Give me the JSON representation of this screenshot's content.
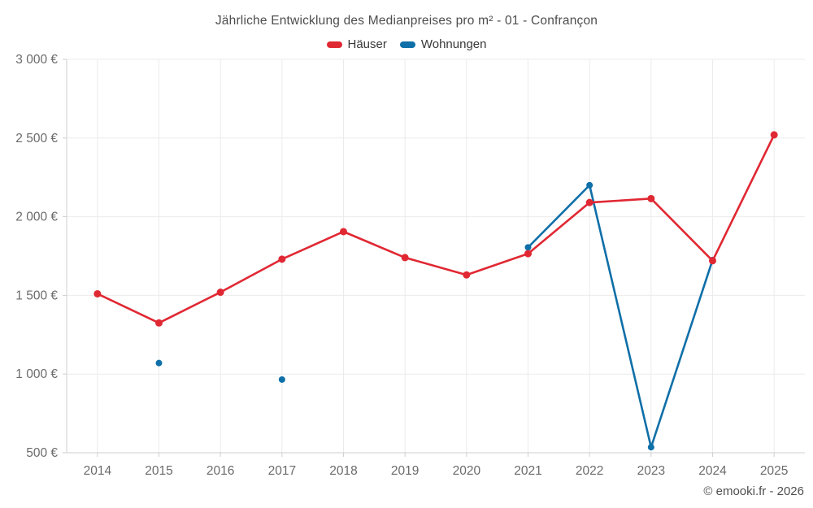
{
  "header": {
    "title": "Jährliche Entwicklung des Medianpreises pro m² - 01 - Confrançon"
  },
  "footer": {
    "copyright": "© emooki.fr - 2026"
  },
  "colors": {
    "haeuser": "#e02833",
    "wohnungen": "#0f6fa8",
    "grid": "#ebebeb",
    "axis": "#cfcfcf",
    "axis_label": "#6b6b6b"
  },
  "chart_data": {
    "type": "line",
    "title": "Jährliche Entwicklung des Medianpreises pro m² - 01 - Confrançon",
    "xlabel": "",
    "ylabel": "",
    "categories": [
      "2014",
      "2015",
      "2016",
      "2017",
      "2018",
      "2019",
      "2020",
      "2021",
      "2022",
      "2023",
      "2024",
      "2025"
    ],
    "series": [
      {
        "name": "Häuser",
        "color": "#e02833",
        "marker_radius": 4.5,
        "line_width": 2.6,
        "values": [
          1510,
          1325,
          1520,
          1730,
          1905,
          1740,
          1630,
          1765,
          2090,
          2115,
          1720,
          2520
        ]
      },
      {
        "name": "Wohnungen",
        "color": "#0f6fa8",
        "marker_radius": 4,
        "line_width": 2.6,
        "values": [
          null,
          1070,
          null,
          965,
          null,
          null,
          null,
          1805,
          2200,
          535,
          1725,
          null
        ]
      }
    ],
    "ylim": [
      500,
      3000
    ],
    "yticks": [
      500,
      1000,
      1500,
      2000,
      2500,
      3000
    ],
    "ytick_labels": [
      "500 €",
      "1 000 €",
      "1 500 €",
      "2 000 €",
      "2 500 €",
      "3 000 €"
    ],
    "grid": true,
    "legend_position": "top"
  }
}
